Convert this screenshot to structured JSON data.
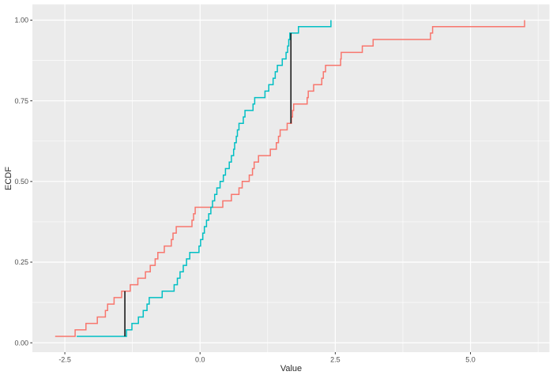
{
  "chart_data": {
    "type": "line",
    "variant": "ecdf-step",
    "title": "",
    "xlabel": "Value",
    "ylabel": "ECDF",
    "legend": "none",
    "grid": "on",
    "xlim": [
      -3.1,
      6.46
    ],
    "ylim": [
      -0.029,
      1.049
    ],
    "x_ticks": {
      "values": [
        -2.5,
        0,
        2.5,
        5
      ],
      "labels": [
        "-2.5",
        "0.0",
        "2.5",
        "5.0"
      ]
    },
    "y_ticks": {
      "values": [
        0,
        0.25,
        0.5,
        0.75,
        1
      ],
      "labels": [
        "0.00",
        "0.25",
        "0.50",
        "0.75",
        "1.00"
      ]
    },
    "x_minor": [
      -1.25,
      1.25,
      3.75,
      6.25
    ],
    "y_minor": [
      0.125,
      0.375,
      0.625,
      0.875
    ],
    "colors": {
      "panel_bg": "#EBEBEB",
      "grid": "#FFFFFF",
      "series_red": "#F8766D",
      "series_cyan": "#00BFC4",
      "ks_segment": "#1A1A1A",
      "tick_mark": "#333333",
      "tick_label": "#4D4D4D",
      "axis_title": "#2B2B2B"
    },
    "series": [
      {
        "id": "red",
        "color": "#F8766D",
        "ecdf_start": 0.02,
        "ecdf_step": 0.02,
        "n": 50,
        "x": [
          -2.68,
          -2.31,
          -2.11,
          -1.9,
          -1.75,
          -1.71,
          -1.59,
          -1.45,
          -1.29,
          -1.15,
          -1.01,
          -0.92,
          -0.83,
          -0.78,
          -0.66,
          -0.53,
          -0.5,
          -0.44,
          -0.15,
          -0.12,
          -0.09,
          0.42,
          0.58,
          0.72,
          0.78,
          0.91,
          0.97,
          1.0,
          1.08,
          1.3,
          1.41,
          1.45,
          1.48,
          1.61,
          1.69,
          1.71,
          1.73,
          1.98,
          2.0,
          2.1,
          2.25,
          2.28,
          2.32,
          2.6,
          2.61,
          3.0,
          3.2,
          4.26,
          4.3,
          6.0
        ]
      },
      {
        "id": "cyan",
        "color": "#00BFC4",
        "ecdf_start": 0.02,
        "ecdf_step": 0.02,
        "n": 50,
        "x": [
          -2.28,
          -1.36,
          -1.26,
          -1.14,
          -1.05,
          -0.98,
          -0.94,
          -0.7,
          -0.48,
          -0.42,
          -0.37,
          -0.31,
          -0.25,
          -0.19,
          -0.02,
          0.01,
          0.05,
          0.08,
          0.12,
          0.16,
          0.2,
          0.23,
          0.27,
          0.31,
          0.37,
          0.43,
          0.47,
          0.54,
          0.58,
          0.62,
          0.64,
          0.67,
          0.69,
          0.72,
          0.8,
          0.83,
          0.98,
          1.01,
          1.2,
          1.27,
          1.35,
          1.39,
          1.43,
          1.52,
          1.59,
          1.62,
          1.64,
          1.66,
          1.82,
          2.42
        ]
      }
    ],
    "annotations": [
      {
        "type": "vertical-segment",
        "x": -1.39,
        "ecdf_from": 0.02,
        "ecdf_to": 0.16,
        "color": "#1A1A1A"
      },
      {
        "type": "vertical-segment",
        "x": 1.68,
        "ecdf_from": 0.68,
        "ecdf_to": 0.96,
        "color": "#1A1A1A"
      }
    ]
  }
}
